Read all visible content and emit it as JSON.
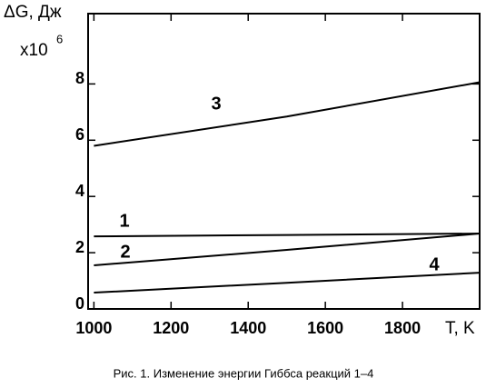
{
  "chart_data": {
    "type": "line",
    "ylabel": "ΔG, Дж",
    "yscale_label": "x10",
    "yscale_exponent": "6",
    "xlabel": "T, K",
    "caption": "Рис. 1. Изменение энергии Гиббса реакций 1–4",
    "x": [
      1000,
      1500,
      2000
    ],
    "series": [
      {
        "name": "1",
        "color": "#000000",
        "values": [
          2.58,
          2.63,
          2.68
        ]
      },
      {
        "name": "2",
        "color": "#000000",
        "values": [
          1.55,
          2.1,
          2.68
        ]
      },
      {
        "name": "3",
        "color": "#000000",
        "values": [
          5.8,
          6.84,
          8.06
        ]
      },
      {
        "name": "4",
        "color": "#000000",
        "values": [
          0.58,
          0.93,
          1.29
        ]
      }
    ],
    "xlim": [
      985,
      2000
    ],
    "ylim": [
      0,
      10.5
    ],
    "xticks": [
      1000,
      1200,
      1400,
      1600,
      1800
    ],
    "yticks": [
      0,
      2,
      4,
      6,
      8
    ],
    "grid": false
  }
}
